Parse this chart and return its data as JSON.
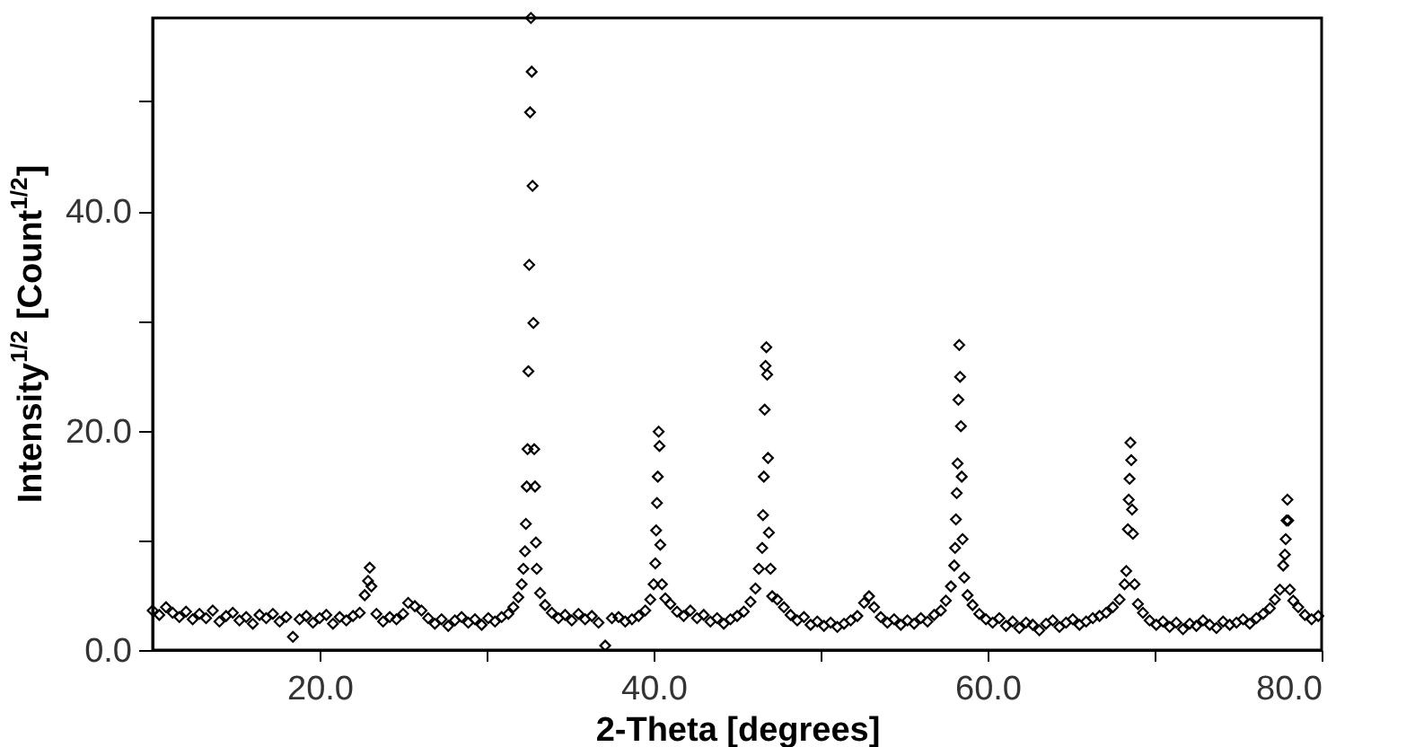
{
  "chart_data": {
    "type": "scatter",
    "xlabel": "2-Theta [degrees]",
    "ylabel": "Intensity$^{1/2}$ [Count$^{1/2}$]",
    "xlim": [
      10,
      80
    ],
    "ylim": [
      0,
      57.6
    ],
    "xticks": [
      {
        "value": 20,
        "label": "20.0"
      },
      {
        "value": 30,
        "label": null
      },
      {
        "value": 40,
        "label": "40.0"
      },
      {
        "value": 50,
        "label": null
      },
      {
        "value": 60,
        "label": "60.0"
      },
      {
        "value": 70,
        "label": null
      },
      {
        "value": 80,
        "label": "80.0"
      }
    ],
    "yticks": [
      {
        "value": 0,
        "label": "0.0"
      },
      {
        "value": 10,
        "label": null
      },
      {
        "value": 20,
        "label": "20.0"
      },
      {
        "value": 30,
        "label": null
      },
      {
        "value": 40,
        "label": "40.0"
      },
      {
        "value": 50,
        "label": null
      }
    ],
    "grid": false,
    "legend": false,
    "marker": "diamond",
    "series": [
      {
        "color": "#000000",
        "x": [
          10.0,
          10.4,
          10.8,
          11.2,
          11.6,
          12.0,
          12.4,
          12.8,
          13.2,
          13.6,
          14.0,
          14.4,
          14.8,
          15.2,
          15.6,
          16.0,
          16.4,
          16.8,
          17.2,
          17.6,
          18.0,
          18.4,
          18.8,
          19.2,
          19.6,
          20.0,
          20.4,
          20.8,
          21.2,
          21.6,
          22.0,
          22.4,
          22.7,
          22.9,
          23.0,
          23.1,
          23.4,
          23.8,
          24.2,
          24.6,
          25.0,
          25.3,
          25.7,
          26.1,
          26.5,
          26.9,
          27.3,
          27.7,
          28.1,
          28.5,
          28.9,
          29.3,
          29.7,
          30.1,
          30.5,
          30.9,
          31.3,
          31.6,
          31.9,
          32.1,
          32.2,
          32.3,
          32.35,
          32.4,
          32.45,
          32.5,
          32.55,
          32.6,
          32.65,
          32.7,
          32.75,
          32.8,
          32.85,
          32.9,
          32.95,
          33.0,
          33.2,
          33.5,
          33.9,
          34.3,
          34.7,
          35.1,
          35.5,
          35.9,
          36.3,
          36.7,
          37.1,
          37.5,
          37.9,
          38.3,
          38.7,
          39.1,
          39.5,
          39.8,
          40.0,
          40.1,
          40.15,
          40.2,
          40.25,
          40.3,
          40.35,
          40.4,
          40.5,
          40.7,
          41.0,
          41.4,
          41.8,
          42.2,
          42.6,
          43.0,
          43.4,
          43.8,
          44.2,
          44.6,
          45.0,
          45.4,
          45.8,
          46.1,
          46.3,
          46.5,
          46.55,
          46.6,
          46.65,
          46.7,
          46.75,
          46.8,
          46.85,
          46.9,
          47.0,
          47.1,
          47.4,
          47.8,
          48.2,
          48.6,
          49.0,
          49.4,
          49.8,
          50.2,
          50.6,
          51.0,
          51.4,
          51.8,
          52.2,
          52.6,
          52.9,
          53.2,
          53.6,
          54.0,
          54.4,
          54.8,
          55.2,
          55.6,
          56.0,
          56.4,
          56.8,
          57.2,
          57.5,
          57.8,
          58.0,
          58.05,
          58.1,
          58.15,
          58.2,
          58.25,
          58.3,
          58.35,
          58.4,
          58.45,
          58.5,
          58.6,
          58.8,
          59.1,
          59.5,
          59.9,
          60.3,
          60.7,
          61.1,
          61.5,
          61.9,
          62.3,
          62.7,
          63.1,
          63.5,
          63.9,
          64.3,
          64.7,
          65.1,
          65.5,
          65.9,
          66.3,
          66.7,
          67.1,
          67.5,
          67.9,
          68.2,
          68.3,
          68.4,
          68.45,
          68.5,
          68.55,
          68.6,
          68.65,
          68.7,
          68.8,
          69.0,
          69.3,
          69.7,
          70.1,
          70.5,
          70.9,
          71.3,
          71.7,
          72.1,
          72.5,
          72.9,
          73.3,
          73.7,
          74.1,
          74.5,
          74.9,
          75.3,
          75.7,
          76.1,
          76.5,
          76.9,
          77.2,
          77.5,
          77.7,
          77.8,
          77.85,
          77.9,
          77.95,
          78.0,
          78.1,
          78.3,
          78.6,
          79.0,
          79.4,
          79.8
        ],
        "values": [
          3.6,
          3.2,
          3.9,
          3.4,
          3.0,
          3.5,
          2.8,
          3.3,
          2.9,
          3.6,
          2.6,
          3.1,
          3.4,
          2.7,
          3.0,
          2.4,
          3.2,
          2.9,
          3.3,
          2.6,
          3.0,
          1.2,
          2.8,
          3.1,
          2.5,
          2.9,
          3.2,
          2.4,
          3.0,
          2.7,
          3.1,
          3.4,
          5.0,
          6.3,
          7.5,
          5.8,
          3.3,
          2.6,
          3.0,
          2.8,
          3.3,
          4.3,
          4.0,
          3.6,
          2.9,
          2.4,
          2.8,
          2.2,
          2.7,
          3.0,
          2.5,
          2.8,
          2.3,
          2.9,
          2.6,
          3.0,
          3.3,
          3.9,
          4.8,
          6.0,
          7.4,
          9.0,
          11.5,
          14.9,
          18.3,
          25.4,
          35.1,
          49.0,
          57.6,
          52.7,
          42.3,
          29.8,
          18.3,
          14.9,
          9.8,
          7.4,
          5.2,
          4.1,
          3.4,
          2.9,
          3.2,
          2.7,
          3.3,
          2.8,
          3.1,
          2.5,
          0.4,
          2.9,
          3.0,
          2.6,
          2.8,
          3.1,
          3.6,
          4.6,
          6.0,
          7.9,
          10.9,
          13.4,
          15.8,
          19.9,
          18.6,
          9.6,
          6.0,
          4.7,
          4.2,
          3.5,
          3.1,
          3.6,
          2.9,
          3.2,
          2.6,
          2.9,
          2.4,
          2.8,
          3.1,
          3.5,
          4.4,
          5.6,
          7.4,
          9.3,
          12.3,
          15.8,
          21.9,
          25.9,
          27.6,
          25.1,
          17.5,
          10.7,
          7.4,
          4.9,
          4.6,
          3.9,
          3.2,
          2.7,
          3.0,
          2.3,
          2.6,
          2.2,
          2.5,
          2.1,
          2.4,
          2.7,
          3.1,
          4.3,
          4.9,
          3.9,
          3.0,
          2.5,
          2.8,
          2.3,
          2.7,
          2.4,
          2.9,
          2.6,
          3.2,
          3.6,
          4.5,
          5.8,
          7.7,
          9.3,
          11.9,
          14.3,
          17.0,
          22.8,
          27.8,
          24.9,
          20.4,
          15.8,
          10.1,
          6.6,
          5.0,
          4.1,
          3.3,
          2.8,
          2.5,
          2.9,
          2.2,
          2.6,
          2.0,
          2.5,
          2.3,
          1.8,
          2.4,
          2.7,
          2.1,
          2.5,
          2.8,
          2.3,
          2.6,
          2.9,
          3.1,
          3.4,
          3.9,
          4.6,
          6.0,
          7.2,
          11.0,
          13.7,
          15.6,
          18.9,
          17.3,
          12.8,
          10.6,
          6.0,
          4.2,
          3.4,
          2.7,
          2.3,
          2.6,
          2.1,
          2.5,
          1.9,
          2.4,
          2.2,
          2.7,
          2.3,
          2.0,
          2.6,
          2.3,
          2.5,
          2.8,
          2.4,
          2.9,
          3.3,
          3.8,
          4.6,
          5.5,
          7.7,
          8.7,
          10.1,
          11.8,
          13.7,
          11.8,
          5.5,
          4.5,
          3.9,
          3.2,
          2.8,
          3.1
        ]
      }
    ]
  }
}
